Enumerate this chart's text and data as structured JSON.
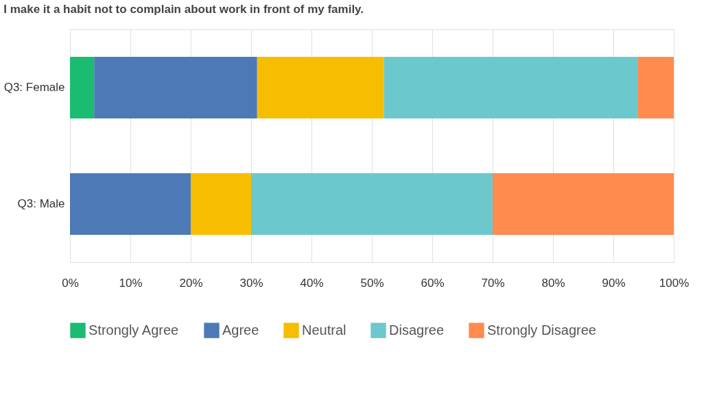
{
  "chart_data": {
    "type": "bar",
    "orientation": "horizontal",
    "stacked": true,
    "title": "I make it a habit not to complain about work in front of my family.",
    "categories": [
      "Q3: Female",
      "Q3: Male"
    ],
    "series": [
      {
        "name": "Strongly Agree",
        "color": "#1abc71",
        "values": [
          4,
          0
        ]
      },
      {
        "name": "Agree",
        "color": "#4d7ab6",
        "values": [
          27,
          20
        ]
      },
      {
        "name": "Neutral",
        "color": "#f7bd00",
        "values": [
          21,
          10
        ]
      },
      {
        "name": "Disagree",
        "color": "#6bc8cc",
        "values": [
          42,
          40
        ]
      },
      {
        "name": "Strongly Disagree",
        "color": "#ff8b4f",
        "values": [
          6,
          30
        ]
      }
    ],
    "xlim": [
      0,
      100
    ],
    "xticks": [
      {
        "value": 0,
        "label": "0%"
      },
      {
        "value": 10,
        "label": "10%"
      },
      {
        "value": 20,
        "label": "20%"
      },
      {
        "value": 30,
        "label": "30%"
      },
      {
        "value": 40,
        "label": "40%"
      },
      {
        "value": 50,
        "label": "50%"
      },
      {
        "value": 60,
        "label": "60%"
      },
      {
        "value": 70,
        "label": "70%"
      },
      {
        "value": 80,
        "label": "80%"
      },
      {
        "value": 90,
        "label": "90%"
      },
      {
        "value": 100,
        "label": "100%"
      }
    ],
    "grid": "x",
    "legend": "bottom"
  }
}
